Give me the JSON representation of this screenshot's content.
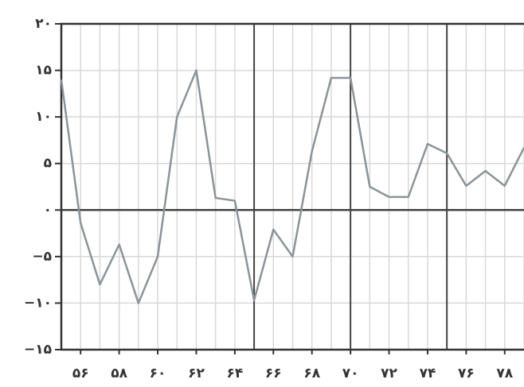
{
  "chart_data": {
    "type": "line",
    "x": [
      55,
      56,
      57,
      58,
      59,
      60,
      61,
      62,
      63,
      64,
      65,
      66,
      67,
      68,
      69,
      70,
      71,
      72,
      73,
      74,
      75,
      76,
      77,
      78,
      79
    ],
    "values": [
      14,
      -1.4,
      -8,
      -3.7,
      -10,
      -5,
      10,
      15,
      1.3,
      1,
      -9.7,
      -2.1,
      -5,
      6.3,
      14.2,
      14.2,
      2.5,
      1.4,
      1.4,
      7.1,
      6.1,
      2.6,
      4.2,
      2.6,
      6.7
    ],
    "color": "#8a9499",
    "xlim": [
      55,
      79
    ],
    "xticks": [
      {
        "value": 56,
        "label": "۵۶"
      },
      {
        "value": 58,
        "label": "۵۸"
      },
      {
        "value": 60,
        "label": "۶۰"
      },
      {
        "value": 62,
        "label": "۶۲"
      },
      {
        "value": 64,
        "label": "۶۴"
      },
      {
        "value": 66,
        "label": "۶۶"
      },
      {
        "value": 68,
        "label": "۶۸"
      },
      {
        "value": 70,
        "label": "۷۰"
      },
      {
        "value": 72,
        "label": "۷۲"
      },
      {
        "value": 74,
        "label": "۷۴"
      },
      {
        "value": 76,
        "label": "۷۶"
      },
      {
        "value": 78,
        "label": "۷۸"
      }
    ],
    "ylim": [
      -15,
      20
    ],
    "yticks": [
      {
        "value": -15,
        "label": "−۱۵"
      },
      {
        "value": -10,
        "label": "−۱۰"
      },
      {
        "value": -5,
        "label": "−۵"
      },
      {
        "value": 0,
        "label": "۰"
      },
      {
        "value": 5,
        "label": "۵"
      },
      {
        "value": 10,
        "label": "۱۰"
      },
      {
        "value": 15,
        "label": "۱۵"
      },
      {
        "value": 20,
        "label": "۲۰"
      }
    ],
    "x_major_lines": [
      65,
      70,
      75
    ],
    "grid": true,
    "zero_line": true
  }
}
